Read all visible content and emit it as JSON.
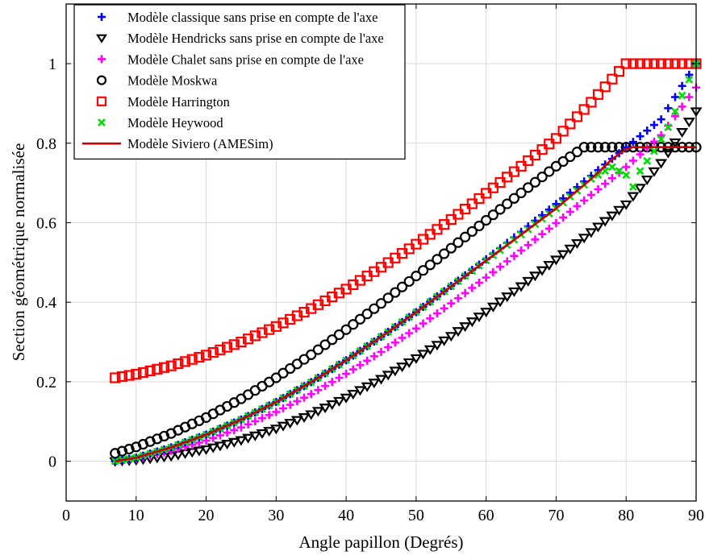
{
  "chart_data": {
    "type": "scatter",
    "xlabel": "Angle papillon (Degrés)",
    "ylabel": "Section géométrique normalisée",
    "xlim": [
      0,
      90
    ],
    "ylim": [
      -0.1,
      1.15
    ],
    "xticks": [
      0,
      10,
      20,
      30,
      40,
      50,
      60,
      70,
      80,
      90
    ],
    "yticks": [
      0,
      0.2,
      0.4,
      0.6,
      0.8,
      1
    ],
    "ytick_labels": [
      "0",
      "0.2",
      "0.4",
      "0.6",
      "0.8",
      "1"
    ],
    "grid": true,
    "legend_position": "top-left",
    "series": [
      {
        "name": "Modèle classique sans prise en compte de l'axe",
        "marker": "plus",
        "color": "#0000ff",
        "x": [
          7,
          10,
          15,
          20,
          25,
          30,
          35,
          40,
          45,
          50,
          55,
          60,
          65,
          70,
          75,
          80,
          85,
          90
        ],
        "y": [
          0,
          0.009,
          0.035,
          0.067,
          0.105,
          0.149,
          0.199,
          0.254,
          0.313,
          0.375,
          0.441,
          0.508,
          0.577,
          0.647,
          0.718,
          0.789,
          0.86,
          1.0
        ]
      },
      {
        "name": "Modèle Hendricks sans prise en compte de l'axe",
        "marker": "triangle-down",
        "color": "#000000",
        "x": [
          7,
          10,
          15,
          20,
          25,
          30,
          35,
          40,
          45,
          50,
          55,
          60,
          65,
          70,
          75,
          80,
          85,
          90
        ],
        "y": [
          0,
          0.003,
          0.013,
          0.03,
          0.053,
          0.082,
          0.118,
          0.16,
          0.207,
          0.259,
          0.315,
          0.376,
          0.44,
          0.507,
          0.576,
          0.646,
          0.75,
          0.88
        ]
      },
      {
        "name": "Modèle Chalet sans prise en compte de l'axe",
        "marker": "plus",
        "color": "#ff00ff",
        "x": [
          7,
          10,
          15,
          20,
          25,
          30,
          35,
          40,
          45,
          50,
          55,
          60,
          65,
          70,
          75,
          80,
          85,
          90
        ],
        "y": [
          0,
          0.006,
          0.026,
          0.052,
          0.085,
          0.124,
          0.169,
          0.22,
          0.275,
          0.334,
          0.397,
          0.462,
          0.53,
          0.599,
          0.67,
          0.74,
          0.82,
          0.94
        ]
      },
      {
        "name": "Modèle Moskwa",
        "marker": "circle",
        "color": "#000000",
        "x": [
          7,
          10,
          15,
          20,
          25,
          30,
          35,
          40,
          45,
          50,
          55,
          60,
          65,
          70,
          74,
          75,
          80,
          85,
          90
        ],
        "y": [
          0.02,
          0.036,
          0.07,
          0.11,
          0.157,
          0.21,
          0.268,
          0.331,
          0.397,
          0.466,
          0.536,
          0.606,
          0.675,
          0.742,
          0.79,
          0.79,
          0.79,
          0.79,
          0.79
        ]
      },
      {
        "name": "Modèle Harrington",
        "marker": "square",
        "color": "#ff0000",
        "x": [
          7,
          10,
          15,
          20,
          25,
          30,
          35,
          40,
          45,
          50,
          55,
          60,
          65,
          70,
          75,
          80,
          85,
          90
        ],
        "y": [
          0.21,
          0.219,
          0.24,
          0.267,
          0.3,
          0.339,
          0.384,
          0.433,
          0.488,
          0.546,
          0.608,
          0.674,
          0.742,
          0.812,
          0.903,
          1.0,
          1.0,
          1.0
        ]
      },
      {
        "name": "Modèle Heywood",
        "marker": "x",
        "color": "#00dd00",
        "x": [
          7,
          10,
          15,
          20,
          25,
          30,
          35,
          40,
          45,
          50,
          55,
          60,
          65,
          70,
          75,
          78,
          80,
          81,
          82,
          84,
          86,
          88,
          90
        ],
        "y": [
          0,
          0.009,
          0.035,
          0.067,
          0.105,
          0.149,
          0.199,
          0.254,
          0.313,
          0.375,
          0.44,
          0.505,
          0.57,
          0.636,
          0.71,
          0.74,
          0.72,
          0.69,
          0.73,
          0.78,
          0.84,
          0.92,
          1.0
        ]
      },
      {
        "name": "Modèle Siviero (AMESim)",
        "marker": "line",
        "color": "#cc0000",
        "x": [
          7,
          10,
          15,
          20,
          25,
          30,
          35,
          40,
          45,
          50,
          55,
          60,
          65,
          70,
          75,
          78,
          80,
          81,
          90
        ],
        "y": [
          0,
          0.009,
          0.035,
          0.067,
          0.105,
          0.149,
          0.199,
          0.254,
          0.313,
          0.375,
          0.44,
          0.505,
          0.57,
          0.636,
          0.71,
          0.76,
          0.785,
          0.79,
          0.79
        ]
      }
    ]
  }
}
